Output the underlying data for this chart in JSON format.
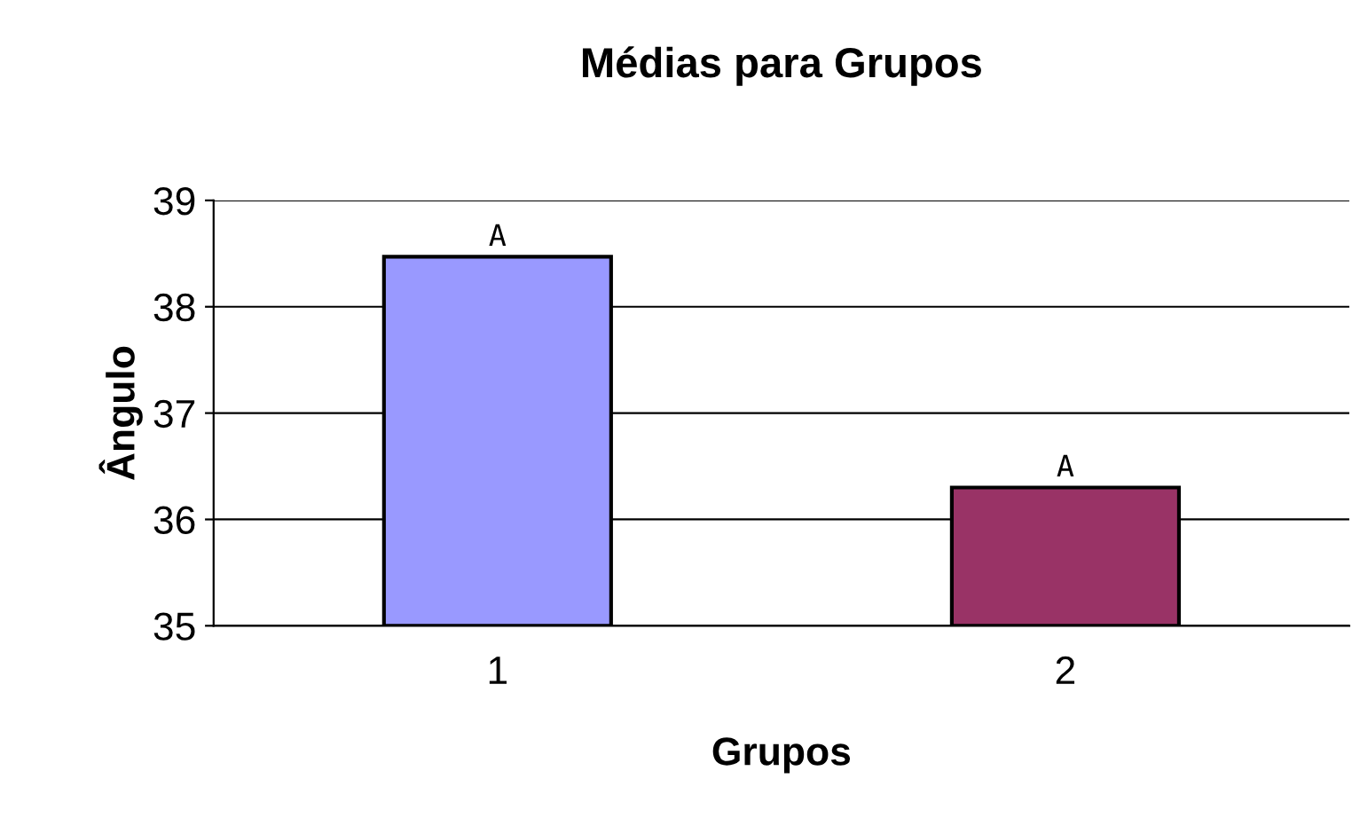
{
  "chart_data": {
    "type": "bar",
    "title": "Médias para Grupos",
    "xlabel": "Grupos",
    "ylabel": "Ângulo",
    "categories": [
      "1",
      "2"
    ],
    "values": [
      38.47,
      36.3
    ],
    "colors": [
      "#9999ff",
      "#993366"
    ],
    "ylim": [
      35,
      39
    ],
    "yticks": [
      35,
      36,
      37,
      38,
      39
    ],
    "grid": "y",
    "legend": false,
    "annotations": [
      {
        "text": "A",
        "x": "1",
        "y": 38.47
      },
      {
        "text": "A",
        "x": "2",
        "y": 36.3
      }
    ]
  }
}
